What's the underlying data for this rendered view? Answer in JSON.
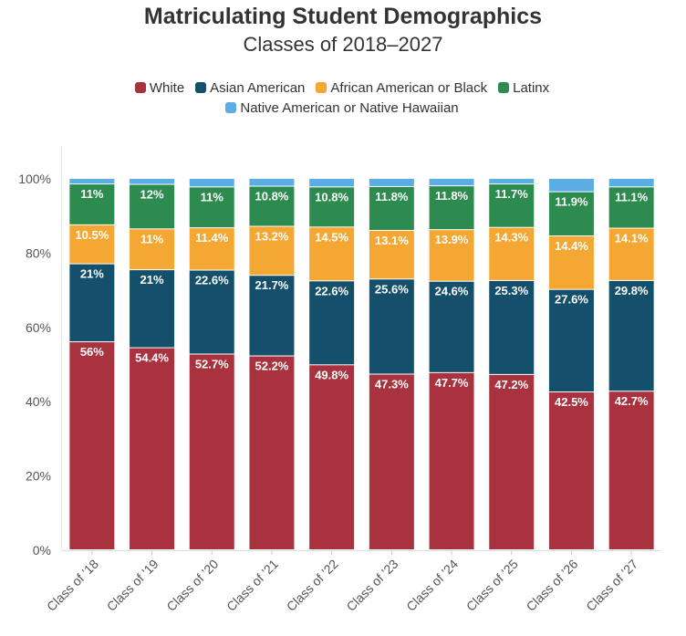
{
  "chart_data": {
    "type": "bar",
    "stacked": true,
    "title": "Matriculating Student Demographics",
    "subtitle": "Classes of 2018–2027",
    "xlabel": "",
    "ylabel": "",
    "ylim": [
      0,
      100
    ],
    "y_ticks": [
      "0%",
      "20%",
      "40%",
      "60%",
      "80%",
      "100%"
    ],
    "y_tick_values": [
      0,
      20,
      40,
      60,
      80,
      100
    ],
    "grid": false,
    "legend_position": "top",
    "categories": [
      "Class of ’18",
      "Class of ’19",
      "Class of ’20",
      "Class of ’21",
      "Class of ’22",
      "Class of ’23",
      "Class of ’24",
      "Class of ’25",
      "Class of ’26",
      "Class of ’27"
    ],
    "series": [
      {
        "name": "White",
        "color": "#a8323e",
        "values": [
          56,
          54.4,
          52.7,
          52.2,
          49.8,
          47.3,
          47.7,
          47.2,
          42.5,
          42.7
        ],
        "labels": [
          "56%",
          "54.4%",
          "52.7%",
          "52.2%",
          "49.8%",
          "47.3%",
          "47.7%",
          "47.2%",
          "42.5%",
          "42.7%"
        ]
      },
      {
        "name": "Asian American",
        "color": "#14506b",
        "values": [
          21,
          21,
          22.6,
          21.7,
          22.6,
          25.6,
          24.6,
          25.3,
          27.6,
          29.8
        ],
        "labels": [
          "21%",
          "21%",
          "22.6%",
          "21.7%",
          "22.6%",
          "25.6%",
          "24.6%",
          "25.3%",
          "27.6%",
          "29.8%"
        ]
      },
      {
        "name": "African American or Black",
        "color": "#f5a733",
        "values": [
          10.5,
          11,
          11.4,
          13.2,
          14.5,
          13.1,
          13.9,
          14.3,
          14.4,
          14.1
        ],
        "labels": [
          "10.5%",
          "11%",
          "11.4%",
          "13.2%",
          "14.5%",
          "13.1%",
          "13.9%",
          "14.3%",
          "14.4%",
          "14.1%"
        ]
      },
      {
        "name": "Latinx",
        "color": "#2e8b4f",
        "values": [
          11,
          12,
          11,
          10.8,
          10.8,
          11.8,
          11.8,
          11.7,
          11.9,
          11.1
        ],
        "labels": [
          "11%",
          "12%",
          "11%",
          "10.8%",
          "10.8%",
          "11.8%",
          "11.8%",
          "11.7%",
          "11.9%",
          "11.1%"
        ]
      },
      {
        "name": "Native American or Native Hawaiian",
        "color": "#5aaee3",
        "values": [
          1.5,
          1.6,
          2.3,
          2.1,
          2.3,
          2.2,
          2.0,
          1.5,
          3.6,
          2.3
        ],
        "labels": [
          "",
          "",
          "",
          "",
          "",
          "",
          "",
          "",
          "",
          ""
        ]
      }
    ]
  }
}
